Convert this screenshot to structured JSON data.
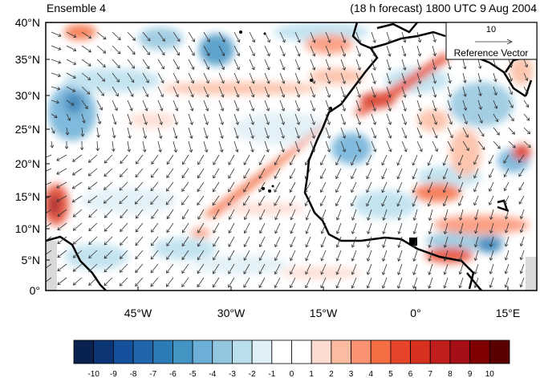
{
  "title": {
    "left": "Ensemble 4",
    "right": "(18 h forecast) 1800 UTC 9 Aug 2004"
  },
  "map": {
    "lat_labels": [
      "40°N",
      "35°N",
      "30°N",
      "25°N",
      "20°N",
      "15°N",
      "10°N",
      "5°N",
      "0°"
    ],
    "lon_labels": [
      "45°W",
      "30°W",
      "15°W",
      "0°",
      "15°E"
    ],
    "colors": {
      "frame": "#000000",
      "land_missing": "#d9d9d9",
      "coastline": "#000000",
      "vector": "#333333"
    }
  },
  "reference_vector": {
    "magnitude": "10",
    "label": "Reference Vector"
  },
  "colorbar": {
    "labels": [
      "-10",
      "-9",
      "-8",
      "-7",
      "-6",
      "-5",
      "-4",
      "-3",
      "-2",
      "-1",
      "0",
      "1",
      "2",
      "3",
      "4",
      "5",
      "6",
      "7",
      "8",
      "9",
      "10"
    ],
    "colors": [
      "#08214f",
      "#0b3575",
      "#15509c",
      "#2166ac",
      "#2c7bb6",
      "#4393c3",
      "#6baed6",
      "#92c5de",
      "#b9dfed",
      "#deeff7",
      "#ffffff",
      "#ffffff",
      "#fddbd0",
      "#fcbba1",
      "#fc9272",
      "#f46d43",
      "#e6452c",
      "#d7301f",
      "#c01d1d",
      "#a50f15",
      "#7f0000",
      "#5a0000"
    ]
  }
}
